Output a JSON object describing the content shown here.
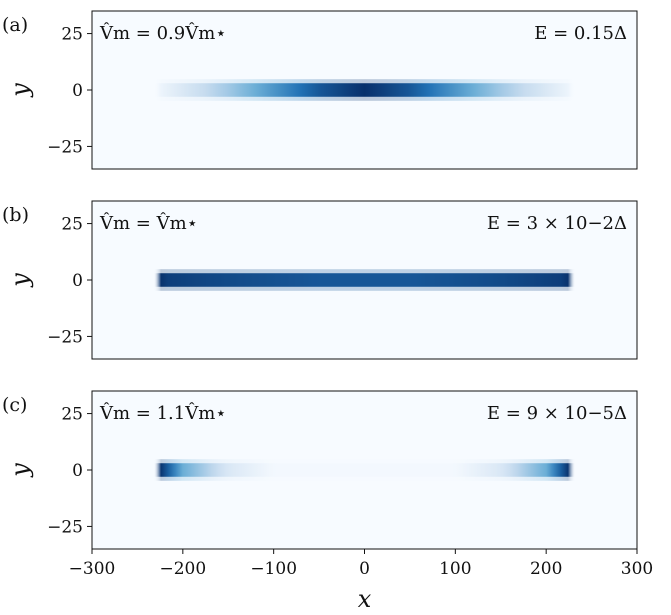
{
  "chart_data": [
    {
      "type": "heatmap",
      "panel_label": "(a)",
      "annotation_left": "V̂m = 0.9V̂m⋆",
      "annotation_right": "E = 0.15Δ",
      "ylabel": "y",
      "xlim": [
        -300,
        300
      ],
      "ylim": [
        -35,
        35
      ],
      "yticks": [
        25,
        0,
        -25
      ],
      "y_tick_labels": [
        "25",
        "0",
        "−25"
      ],
      "colormap": "Blues",
      "intensity_profile": {
        "x": [
          -225,
          -200,
          -150,
          -100,
          -50,
          0,
          50,
          100,
          150,
          200,
          225
        ],
        "value": [
          0.05,
          0.15,
          0.35,
          0.6,
          0.85,
          1.0,
          0.85,
          0.6,
          0.35,
          0.15,
          0.05
        ]
      },
      "y_width": 3
    },
    {
      "type": "heatmap",
      "panel_label": "(b)",
      "annotation_left": "V̂m = V̂m⋆",
      "annotation_right": "E = 3 × 10−2Δ",
      "ylabel": "y",
      "xlim": [
        -300,
        300
      ],
      "ylim": [
        -35,
        35
      ],
      "yticks": [
        25,
        0,
        -25
      ],
      "y_tick_labels": [
        "25",
        "0",
        "−25"
      ],
      "colormap": "Blues",
      "intensity_profile": {
        "x": [
          -225,
          -220,
          -150,
          -50,
          0,
          50,
          150,
          220,
          225
        ],
        "value": [
          1.0,
          0.95,
          0.9,
          0.85,
          0.85,
          0.85,
          0.9,
          0.95,
          1.0
        ]
      },
      "y_width": 3
    },
    {
      "type": "heatmap",
      "panel_label": "(c)",
      "annotation_left": "V̂m = 1.1V̂m⋆",
      "annotation_right": "E = 9 × 10−5Δ",
      "ylabel": "y",
      "xlabel": "x",
      "xlim": [
        -300,
        300
      ],
      "ylim": [
        -35,
        35
      ],
      "yticks": [
        25,
        0,
        -25
      ],
      "y_tick_labels": [
        "25",
        "0",
        "−25"
      ],
      "xticks": [
        -300,
        -200,
        -100,
        0,
        100,
        200,
        300
      ],
      "x_tick_labels": [
        "−300",
        "−200",
        "−100",
        "0",
        "100",
        "200",
        "300"
      ],
      "colormap": "Blues",
      "intensity_profile": {
        "x": [
          -225,
          -200,
          -150,
          -100,
          100,
          150,
          200,
          225
        ],
        "value": [
          1.0,
          0.5,
          0.15,
          0.02,
          0.02,
          0.15,
          0.5,
          1.0
        ]
      },
      "y_width": 3
    }
  ]
}
